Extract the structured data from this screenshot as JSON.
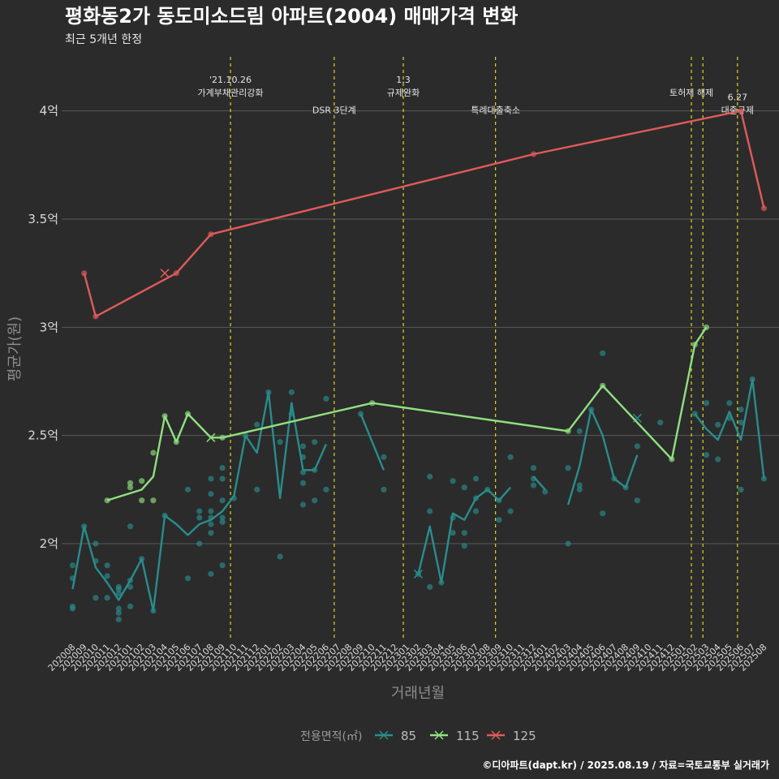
{
  "title": "평화동2가 동도미소드림 아파트(2004) 매매가격 변화",
  "subtitle": "최근 5개년 한정",
  "caption": "©디아파트(dapt.kr) / 2025.08.19 / 자료=국토교통부 실거래가",
  "chart_data": {
    "type": "line",
    "xlabel": "거래년월",
    "ylabel": "평균가(원)",
    "ylim": [
      1.55,
      4.25
    ],
    "y_ticks": [
      2,
      2.5,
      3,
      3.5,
      4
    ],
    "y_tick_labels": [
      "2억",
      "2.5억",
      "3억",
      "3.5억",
      "4억"
    ],
    "x_labels": [
      "202008",
      "202009",
      "202010",
      "202011",
      "202012",
      "202101",
      "202102",
      "202103",
      "202104",
      "202105",
      "202106",
      "202107",
      "202108",
      "202109",
      "202110",
      "202111",
      "202112",
      "202201",
      "202202",
      "202203",
      "202204",
      "202205",
      "202206",
      "202207",
      "202208",
      "202209",
      "202210",
      "202211",
      "202212",
      "202301",
      "202302",
      "202303",
      "202304",
      "202305",
      "202306",
      "202307",
      "202308",
      "202309",
      "202310",
      "202311",
      "202312",
      "202401",
      "202402",
      "202403",
      "202404",
      "202405",
      "202406",
      "202407",
      "202408",
      "202409",
      "202410",
      "202411",
      "202412",
      "202501",
      "202502",
      "202503",
      "202504",
      "202505",
      "202506",
      "202507",
      "202508"
    ],
    "legend_title": "전용면적(㎡)",
    "grid": true,
    "series": [
      {
        "name": "85",
        "color": "#2a8c8c",
        "segments": [
          [
            [
              0,
              1.79
            ],
            [
              1,
              2.08
            ],
            [
              2,
              1.89
            ],
            [
              3,
              1.82
            ],
            [
              4,
              1.74
            ],
            [
              5,
              1.83
            ],
            [
              6,
              1.93
            ],
            [
              7,
              1.69
            ],
            [
              8,
              2.13
            ],
            [
              9,
              2.09
            ],
            [
              10,
              2.04
            ],
            [
              11,
              2.09
            ],
            [
              12,
              2.11
            ],
            [
              13,
              2.15
            ],
            [
              14,
              2.22
            ],
            [
              15,
              2.5
            ],
            [
              16,
              2.42
            ],
            [
              17,
              2.7
            ],
            [
              18,
              2.21
            ],
            [
              19,
              2.65
            ],
            [
              20,
              2.34
            ],
            [
              21,
              2.34
            ],
            [
              22,
              2.46
            ]
          ],
          [
            [
              25,
              2.6
            ],
            [
              27,
              2.34
            ]
          ],
          [
            [
              30,
              1.86
            ],
            [
              31,
              2.08
            ],
            [
              32,
              1.82
            ],
            [
              33,
              2.14
            ],
            [
              34,
              2.11
            ],
            [
              35,
              2.21
            ],
            [
              36,
              2.25
            ],
            [
              37,
              2.2
            ],
            [
              38,
              2.26
            ]
          ],
          [
            [
              40,
              2.31
            ],
            [
              41,
              2.25
            ]
          ],
          [
            [
              43,
              2.18
            ],
            [
              44,
              2.36
            ],
            [
              45,
              2.62
            ],
            [
              46,
              2.5
            ],
            [
              47,
              2.3
            ],
            [
              48,
              2.26
            ],
            [
              49,
              2.41
            ]
          ],
          [
            [
              54,
              2.6
            ],
            [
              55,
              2.53
            ],
            [
              56,
              2.48
            ],
            [
              57,
              2.61
            ],
            [
              58,
              2.48
            ],
            [
              59,
              2.76
            ],
            [
              60,
              2.3
            ]
          ]
        ],
        "points": [
          [
            0,
            1.9
          ],
          [
            0,
            1.84
          ],
          [
            0,
            1.71
          ],
          [
            0,
            1.7
          ],
          [
            1,
            2.08
          ],
          [
            2,
            2.0
          ],
          [
            2,
            1.92
          ],
          [
            2,
            1.75
          ],
          [
            3,
            1.9
          ],
          [
            3,
            1.85
          ],
          [
            3,
            1.75
          ],
          [
            4,
            1.8
          ],
          [
            4,
            1.79
          ],
          [
            4,
            1.77
          ],
          [
            4,
            1.7
          ],
          [
            4,
            1.68
          ],
          [
            4,
            1.65
          ],
          [
            5,
            2.08
          ],
          [
            5,
            1.83
          ],
          [
            5,
            1.8
          ],
          [
            5,
            1.71
          ],
          [
            6,
            1.93
          ],
          [
            7,
            1.69
          ],
          [
            8,
            2.13
          ],
          [
            10,
            2.25
          ],
          [
            10,
            1.84
          ],
          [
            11,
            2.15
          ],
          [
            11,
            2.12
          ],
          [
            11,
            2.0
          ],
          [
            12,
            2.3
          ],
          [
            12,
            2.23
          ],
          [
            12,
            2.15
          ],
          [
            12,
            2.12
          ],
          [
            12,
            2.09
          ],
          [
            12,
            2.05
          ],
          [
            12,
            1.86
          ],
          [
            13,
            2.35
          ],
          [
            13,
            2.3
          ],
          [
            13,
            2.2
          ],
          [
            13,
            2.12
          ],
          [
            13,
            2.1
          ],
          [
            13,
            1.9
          ],
          [
            14,
            2.21
          ],
          [
            15,
            2.5
          ],
          [
            16,
            2.55
          ],
          [
            16,
            2.25
          ],
          [
            17,
            2.7
          ],
          [
            18,
            2.47
          ],
          [
            18,
            1.94
          ],
          [
            19,
            2.7
          ],
          [
            19,
            2.6
          ],
          [
            20,
            2.45
          ],
          [
            20,
            2.4
          ],
          [
            20,
            2.33
          ],
          [
            20,
            2.28
          ],
          [
            20,
            2.18
          ],
          [
            21,
            2.47
          ],
          [
            21,
            2.34
          ],
          [
            21,
            2.2
          ],
          [
            22,
            2.67
          ],
          [
            22,
            2.25
          ],
          [
            25,
            2.6
          ],
          [
            27,
            2.4
          ],
          [
            27,
            2.25
          ],
          [
            30,
            1.86
          ],
          [
            31,
            2.31
          ],
          [
            31,
            2.15
          ],
          [
            31,
            1.8
          ],
          [
            32,
            1.82
          ],
          [
            33,
            2.29
          ],
          [
            33,
            2.12
          ],
          [
            33,
            2.05
          ],
          [
            34,
            2.26
          ],
          [
            34,
            2.05
          ],
          [
            34,
            1.99
          ],
          [
            35,
            2.3
          ],
          [
            35,
            2.21
          ],
          [
            35,
            2.15
          ],
          [
            36,
            2.25
          ],
          [
            37,
            2.2
          ],
          [
            37,
            2.11
          ],
          [
            38,
            2.4
          ],
          [
            38,
            2.15
          ],
          [
            40,
            2.35
          ],
          [
            40,
            2.3
          ],
          [
            40,
            2.27
          ],
          [
            41,
            2.24
          ],
          [
            43,
            2.35
          ],
          [
            43,
            2.0
          ],
          [
            44,
            2.52
          ],
          [
            44,
            2.27
          ],
          [
            44,
            2.25
          ],
          [
            45,
            2.62
          ],
          [
            46,
            2.88
          ],
          [
            46,
            2.14
          ],
          [
            47,
            2.3
          ],
          [
            48,
            2.26
          ],
          [
            49,
            2.45
          ],
          [
            49,
            2.2
          ],
          [
            51,
            2.56
          ],
          [
            54,
            2.6
          ],
          [
            55,
            2.65
          ],
          [
            55,
            2.41
          ],
          [
            56,
            2.55
          ],
          [
            56,
            2.39
          ],
          [
            57,
            2.65
          ],
          [
            57,
            2.58
          ],
          [
            58,
            2.62
          ],
          [
            58,
            2.56
          ],
          [
            58,
            2.25
          ],
          [
            59,
            2.76
          ],
          [
            60,
            2.3
          ]
        ],
        "marks": [
          [
            30,
            1.86
          ],
          [
            49,
            2.58
          ]
        ]
      },
      {
        "name": "115",
        "color": "#90e080",
        "segments": [
          [
            [
              3,
              2.2
            ],
            [
              6,
              2.25
            ],
            [
              7,
              2.31
            ],
            [
              8,
              2.59
            ],
            [
              9,
              2.47
            ],
            [
              10,
              2.6
            ],
            [
              12,
              2.49
            ],
            [
              13,
              2.49
            ],
            [
              26,
              2.65
            ],
            [
              43,
              2.52
            ],
            [
              46,
              2.73
            ],
            [
              52,
              2.39
            ],
            [
              54,
              2.92
            ],
            [
              55,
              3.0
            ]
          ]
        ],
        "points": [
          [
            3,
            2.2
          ],
          [
            5,
            2.28
          ],
          [
            5,
            2.26
          ],
          [
            6,
            2.29
          ],
          [
            6,
            2.2
          ],
          [
            7,
            2.42
          ],
          [
            7,
            2.2
          ],
          [
            8,
            2.59
          ],
          [
            9,
            2.47
          ],
          [
            10,
            2.6
          ],
          [
            13,
            2.49
          ],
          [
            26,
            2.65
          ],
          [
            43,
            2.52
          ],
          [
            46,
            2.73
          ],
          [
            52,
            2.39
          ],
          [
            54,
            2.92
          ],
          [
            55,
            3.0
          ]
        ],
        "marks": [
          [
            12,
            2.49
          ]
        ]
      },
      {
        "name": "125",
        "color": "#e05a5a",
        "segments": [
          [
            [
              1,
              3.25
            ],
            [
              2,
              3.05
            ],
            [
              9,
              3.25
            ],
            [
              12,
              3.43
            ],
            [
              40,
              3.8
            ],
            [
              58,
              4.0
            ],
            [
              60,
              3.55
            ]
          ]
        ],
        "points": [
          [
            1,
            3.25
          ],
          [
            2,
            3.05
          ],
          [
            9,
            3.25
          ],
          [
            12,
            3.43
          ],
          [
            40,
            3.8
          ],
          [
            58,
            4.0
          ],
          [
            60,
            3.55
          ]
        ],
        "marks": [
          [
            8,
            3.25
          ]
        ]
      }
    ],
    "vlines": [
      {
        "x": 13.7,
        "label": "'21.10.26\n가계부채관리강화",
        "label_y": 4.1
      },
      {
        "x": 22.7,
        "label": "DSR 3단계",
        "label_y": 3.99
      },
      {
        "x": 28.7,
        "label": "1.3\n규제완화",
        "label_y": 4.1
      },
      {
        "x": 36.7,
        "label": "특례대출축소",
        "label_y": 3.99
      },
      {
        "x": 53.7,
        "label": "토허제 해제",
        "label_y": 4.07
      },
      {
        "x": 54.7,
        "label": "",
        "label_y": 4.07
      },
      {
        "x": 57.7,
        "label": "6.27\n대출규제",
        "label_y": 4.02
      }
    ]
  }
}
